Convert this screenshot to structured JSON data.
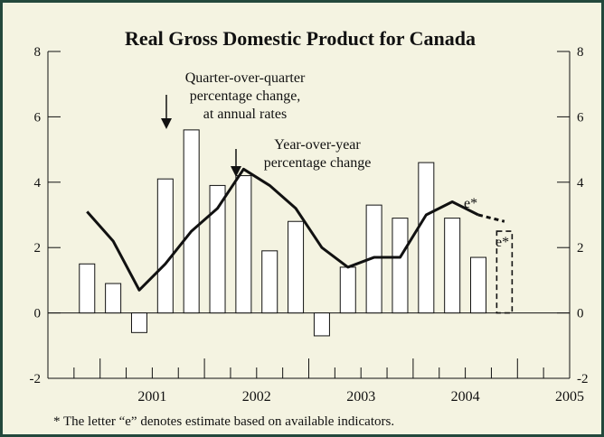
{
  "chart_data": {
    "type": "bar",
    "title": "Real Gross Domestic Product for Canada",
    "xlabel": "",
    "ylabel": "",
    "ylim": [
      -2,
      8
    ],
    "yticks": [
      8,
      6,
      4,
      2,
      0,
      -2
    ],
    "year_labels": [
      "2001",
      "2002",
      "2003",
      "2004",
      "2005"
    ],
    "x_range": [
      2000.5,
      2005.5
    ],
    "bar_series": {
      "name": "Quarter-over-quarter percentage change, at annual rates",
      "points": [
        {
          "x": 2000.875,
          "value": 1.5
        },
        {
          "x": 2001.125,
          "value": 0.9
        },
        {
          "x": 2001.375,
          "value": -0.6
        },
        {
          "x": 2001.625,
          "value": 4.1
        },
        {
          "x": 2001.875,
          "value": 5.6
        },
        {
          "x": 2002.125,
          "value": 3.9
        },
        {
          "x": 2002.375,
          "value": 4.2
        },
        {
          "x": 2002.625,
          "value": 1.9
        },
        {
          "x": 2002.875,
          "value": 2.8
        },
        {
          "x": 2003.125,
          "value": -0.7
        },
        {
          "x": 2003.375,
          "value": 1.4
        },
        {
          "x": 2003.625,
          "value": 3.3
        },
        {
          "x": 2003.875,
          "value": 2.9
        },
        {
          "x": 2004.125,
          "value": 4.6
        },
        {
          "x": 2004.375,
          "value": 2.9
        },
        {
          "x": 2004.625,
          "value": 1.7
        },
        {
          "x": 2004.875,
          "value": 2.5,
          "estimate": true
        }
      ]
    },
    "line_series": {
      "name": "Year-over-year percentage change",
      "points": [
        {
          "x": 2000.875,
          "value": 3.1
        },
        {
          "x": 2001.125,
          "value": 2.2
        },
        {
          "x": 2001.375,
          "value": 0.7
        },
        {
          "x": 2001.625,
          "value": 1.5
        },
        {
          "x": 2001.875,
          "value": 2.5
        },
        {
          "x": 2002.125,
          "value": 3.2
        },
        {
          "x": 2002.375,
          "value": 4.4
        },
        {
          "x": 2002.625,
          "value": 3.9
        },
        {
          "x": 2002.875,
          "value": 3.2
        },
        {
          "x": 2003.125,
          "value": 2.0
        },
        {
          "x": 2003.375,
          "value": 1.4
        },
        {
          "x": 2003.625,
          "value": 1.7
        },
        {
          "x": 2003.875,
          "value": 1.7
        },
        {
          "x": 2004.125,
          "value": 3.0
        },
        {
          "x": 2004.375,
          "value": 3.4
        },
        {
          "x": 2004.625,
          "value": 3.0
        },
        {
          "x": 2004.875,
          "value": 2.8,
          "estimate": true
        }
      ]
    },
    "annotations": {
      "bar_label_lines": [
        "Quarter-over-quarter",
        "percentage change,",
        "at annual rates"
      ],
      "line_label_lines": [
        "Year-over-year",
        "percentage change"
      ],
      "estimate_marker": "e*"
    },
    "footnote": "* The letter “e” denotes estimate based on available indicators."
  }
}
